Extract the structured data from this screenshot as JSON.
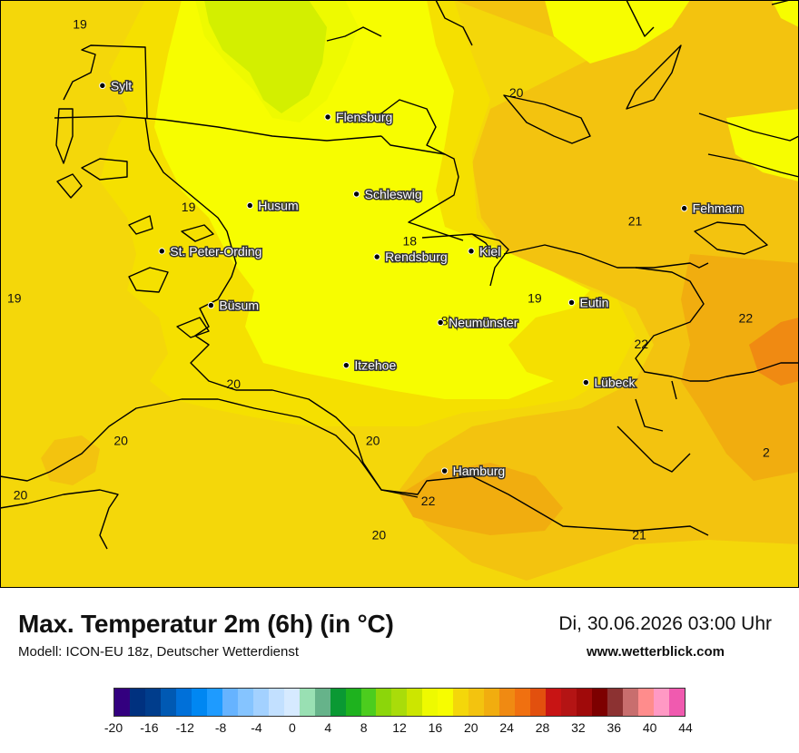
{
  "map": {
    "cities": [
      {
        "name": "Sylt",
        "lon": 8.33,
        "lat": 54.9
      },
      {
        "name": "Flensburg",
        "lon": 9.43,
        "lat": 54.79
      },
      {
        "name": "Schleswig",
        "lon": 9.57,
        "lat": 54.52
      },
      {
        "name": "Husum",
        "lon": 9.05,
        "lat": 54.48
      },
      {
        "name": "St. Peter-Ording",
        "lon": 8.62,
        "lat": 54.32
      },
      {
        "name": "Rendsburg",
        "lon": 9.67,
        "lat": 54.3
      },
      {
        "name": "Kiel",
        "lon": 10.13,
        "lat": 54.32
      },
      {
        "name": "Büsum",
        "lon": 8.86,
        "lat": 54.13
      },
      {
        "name": "Neumünster",
        "lon": 9.98,
        "lat": 54.07
      },
      {
        "name": "Eutin",
        "lon": 10.62,
        "lat": 54.14
      },
      {
        "name": "Fehmarn",
        "lon": 11.17,
        "lat": 54.47
      },
      {
        "name": "Itzehoe",
        "lon": 9.52,
        "lat": 53.92
      },
      {
        "name": "Lübeck",
        "lon": 10.69,
        "lat": 53.86
      },
      {
        "name": "Hamburg",
        "lon": 10.0,
        "lat": 53.55
      }
    ],
    "contour_labels": [
      {
        "text": "19",
        "lon": 8.22,
        "lat": 55.1
      },
      {
        "text": "20",
        "lon": 10.35,
        "lat": 54.86
      },
      {
        "text": "19",
        "lon": 8.75,
        "lat": 54.46
      },
      {
        "text": "21",
        "lon": 10.93,
        "lat": 54.41
      },
      {
        "text": "18",
        "lon": 9.83,
        "lat": 54.34
      },
      {
        "text": "19",
        "lon": 7.9,
        "lat": 54.14
      },
      {
        "text": "19",
        "lon": 10.44,
        "lat": 54.14
      },
      {
        "text": "8",
        "lon": 10.0,
        "lat": 54.06
      },
      {
        "text": "22",
        "lon": 11.47,
        "lat": 54.07
      },
      {
        "text": "22",
        "lon": 10.96,
        "lat": 53.98
      },
      {
        "text": "20",
        "lon": 8.97,
        "lat": 53.84
      },
      {
        "text": "20",
        "lon": 8.42,
        "lat": 53.64
      },
      {
        "text": "20",
        "lon": 9.65,
        "lat": 53.64
      },
      {
        "text": "22",
        "lon": 9.92,
        "lat": 53.43
      },
      {
        "text": "20",
        "lon": 7.93,
        "lat": 53.45
      },
      {
        "text": "20",
        "lon": 9.68,
        "lat": 53.31
      },
      {
        "text": "21",
        "lon": 10.95,
        "lat": 53.31
      },
      {
        "text": "2",
        "lon": 11.57,
        "lat": 53.6
      }
    ],
    "colors": {
      "t16": "#c6e600",
      "t17": "#eefa00",
      "t18": "#f7fd00",
      "t19": "#f5e000",
      "t20": "#f4d70a",
      "t21": "#f3c30f",
      "t22": "#f1ad0f",
      "t23": "#f08a12",
      "coast": "#000000"
    }
  },
  "footer": {
    "title": "Max. Temperatur 2m (6h) (in °C)",
    "subtitle": "Modell: ICON-EU 18z, Deutscher Wetterdienst",
    "datetime": "Di, 30.06.2026 03:00 Uhr",
    "website": "www.wetterblick.com"
  },
  "legend": {
    "colors": [
      "#33007f",
      "#00317f",
      "#003d8c",
      "#0059b3",
      "#0070d9",
      "#0087f2",
      "#1e9bff",
      "#66b3ff",
      "#85c4ff",
      "#a3d1ff",
      "#c2e0ff",
      "#d6eaff",
      "#99e0b3",
      "#66b38a",
      "#0a9933",
      "#1eb21e",
      "#4ccd1e",
      "#8cd60a",
      "#a9dc0a",
      "#cce600",
      "#eefa00",
      "#f7fd00",
      "#f4d70a",
      "#f3c30f",
      "#f1ad0f",
      "#f08a12",
      "#f07010",
      "#e2500e",
      "#c81414",
      "#b41414",
      "#a00a0a",
      "#7d0000",
      "#8c3232",
      "#c86e6e",
      "#ff8c8c",
      "#ff99c4",
      "#f05aaf"
    ],
    "tick_labels": [
      "-20",
      "-16",
      "-12",
      "-8",
      "-4",
      "0",
      "4",
      "8",
      "12",
      "16",
      "20",
      "24",
      "28",
      "32",
      "36",
      "40",
      "44"
    ]
  }
}
